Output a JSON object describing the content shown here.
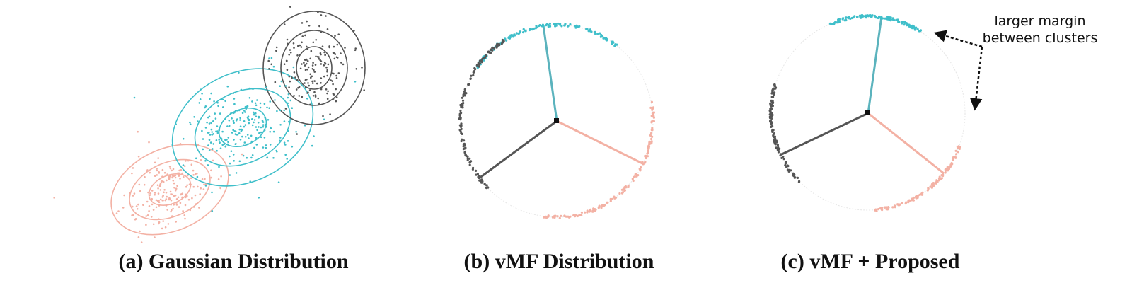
{
  "colors": {
    "cyan": "#3fbfca",
    "salmon": "#f3b1a4",
    "dark": "#555555",
    "circle_outline": "#d9d9d9",
    "annotation": "#111111"
  },
  "panels": [
    {
      "caption": "(a) Gaussian Distribution",
      "clusters": [
        {
          "color": "cyan",
          "points": 260
        },
        {
          "color": "salmon",
          "points": 220
        },
        {
          "color": "dark",
          "points": 170
        }
      ]
    },
    {
      "caption": "(b) vMF Distribution",
      "clusters": [
        {
          "color": "cyan",
          "points": 140
        },
        {
          "color": "salmon",
          "points": 140
        },
        {
          "color": "dark",
          "points": 140
        }
      ]
    },
    {
      "caption": "(c) vMF + Proposed",
      "clusters": [
        {
          "color": "cyan",
          "points": 120
        },
        {
          "color": "salmon",
          "points": 120
        },
        {
          "color": "dark",
          "points": 120
        }
      ]
    }
  ],
  "annotation": {
    "line1": "larger margin",
    "line2": "between clusters"
  }
}
